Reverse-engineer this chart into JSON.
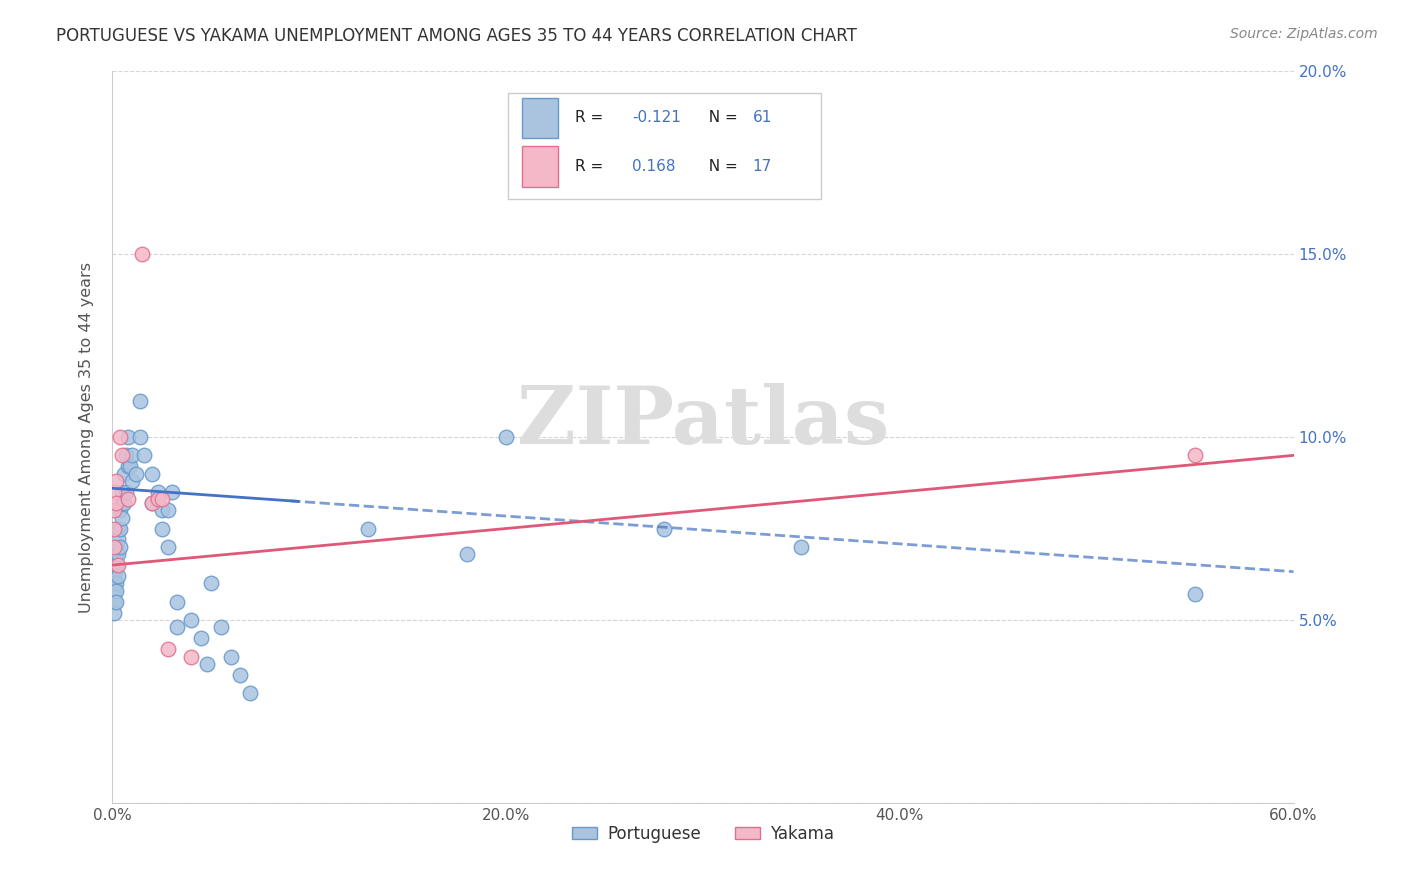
{
  "title": "PORTUGUESE VS YAKAMA UNEMPLOYMENT AMONG AGES 35 TO 44 YEARS CORRELATION CHART",
  "source": "Source: ZipAtlas.com",
  "ylabel": "Unemployment Among Ages 35 to 44 years",
  "xlim": [
    0.0,
    0.6
  ],
  "ylim": [
    0.0,
    0.2
  ],
  "xticks": [
    0.0,
    0.1,
    0.2,
    0.3,
    0.4,
    0.5,
    0.6
  ],
  "yticks": [
    0.0,
    0.05,
    0.1,
    0.15,
    0.2
  ],
  "xtick_labels": [
    "0.0%",
    "",
    "20.0%",
    "",
    "40.0%",
    "",
    "60.0%"
  ],
  "ytick_labels_right": [
    "",
    "5.0%",
    "10.0%",
    "15.0%",
    "20.0%"
  ],
  "portuguese_color": "#aac4e0",
  "portuguese_edge_color": "#6699cc",
  "yakama_color": "#f4b8c8",
  "yakama_edge_color": "#e07090",
  "trend_blue": "#4472c4",
  "trend_pink": "#e05878",
  "watermark_text": "ZIPatlas",
  "r_portuguese": -0.121,
  "n_portuguese": 61,
  "r_yakama": 0.168,
  "n_yakama": 17,
  "portuguese_x": [
    0.001,
    0.001,
    0.001,
    0.001,
    0.001,
    0.001,
    0.001,
    0.001,
    0.002,
    0.002,
    0.002,
    0.002,
    0.002,
    0.002,
    0.003,
    0.003,
    0.003,
    0.003,
    0.004,
    0.004,
    0.004,
    0.005,
    0.005,
    0.005,
    0.006,
    0.006,
    0.007,
    0.007,
    0.008,
    0.008,
    0.009,
    0.01,
    0.01,
    0.012,
    0.014,
    0.014,
    0.016,
    0.02,
    0.02,
    0.023,
    0.025,
    0.025,
    0.028,
    0.028,
    0.03,
    0.033,
    0.033,
    0.04,
    0.045,
    0.048,
    0.05,
    0.055,
    0.06,
    0.065,
    0.07,
    0.13,
    0.18,
    0.2,
    0.28,
    0.35,
    0.55
  ],
  "portuguese_y": [
    0.06,
    0.063,
    0.065,
    0.067,
    0.062,
    0.058,
    0.055,
    0.052,
    0.07,
    0.068,
    0.065,
    0.06,
    0.058,
    0.055,
    0.075,
    0.072,
    0.068,
    0.062,
    0.08,
    0.075,
    0.07,
    0.085,
    0.082,
    0.078,
    0.09,
    0.082,
    0.095,
    0.085,
    0.1,
    0.092,
    0.092,
    0.095,
    0.088,
    0.09,
    0.11,
    0.1,
    0.095,
    0.09,
    0.082,
    0.085,
    0.08,
    0.075,
    0.08,
    0.07,
    0.085,
    0.055,
    0.048,
    0.05,
    0.045,
    0.038,
    0.06,
    0.048,
    0.04,
    0.035,
    0.03,
    0.075,
    0.068,
    0.1,
    0.075,
    0.07,
    0.057
  ],
  "yakama_x": [
    0.001,
    0.001,
    0.001,
    0.001,
    0.002,
    0.002,
    0.003,
    0.004,
    0.005,
    0.008,
    0.015,
    0.02,
    0.023,
    0.025,
    0.028,
    0.04,
    0.55
  ],
  "yakama_y": [
    0.085,
    0.08,
    0.075,
    0.07,
    0.088,
    0.082,
    0.065,
    0.1,
    0.095,
    0.083,
    0.15,
    0.082,
    0.083,
    0.083,
    0.042,
    0.04,
    0.095
  ]
}
